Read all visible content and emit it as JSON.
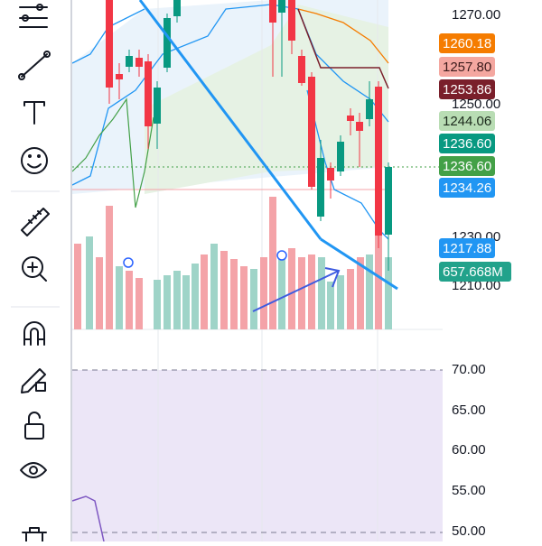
{
  "price_axis": {
    "labels": [
      "1270.00",
      "1250.00",
      "1230.00",
      "1210.00"
    ]
  },
  "price_badges": [
    {
      "label": "1260.18",
      "color": "#f57c00",
      "text_color": "#ffffff"
    },
    {
      "label": "1257.80",
      "color": "#f4a7a0",
      "text_color": "#3a1a1a"
    },
    {
      "label": "1253.86",
      "color": "#7a1f2b",
      "text_color": "#ffffff"
    },
    {
      "label": "1244.06",
      "color": "#b9ddb4",
      "text_color": "#1c2a1c"
    },
    {
      "label": "1236.60",
      "color": "#089981",
      "text_color": "#ffffff"
    },
    {
      "label": "1236.60",
      "color": "#43a047",
      "text_color": "#ffffff"
    },
    {
      "label": "1234.26",
      "color": "#2196f3",
      "text_color": "#ffffff"
    },
    {
      "label": "1217.88",
      "color": "#2196f3",
      "text_color": "#ffffff"
    },
    {
      "label": "657.668M",
      "color": "#22a28b",
      "text_color": "#ffffff"
    }
  ],
  "rsi_axis": {
    "labels": [
      "70.00",
      "65.00",
      "60.00",
      "55.00",
      "50.00"
    ]
  }
}
